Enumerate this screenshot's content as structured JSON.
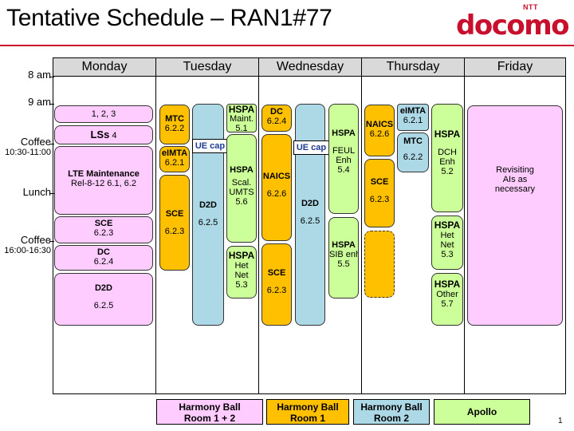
{
  "header": {
    "title": "Tentative Schedule – RAN1#77",
    "logo_small": "NTT",
    "logo_word": "docomo"
  },
  "days": [
    "Monday",
    "Tuesday",
    "Wednesday",
    "Thursday",
    "Friday"
  ],
  "times": {
    "t8": "8 am",
    "t9": "9 am",
    "coffee1": "Coffee",
    "coffee1_time": "10:30-11:00",
    "lunch": "Lunch",
    "coffee2": "Coffee",
    "coffee2_time": "16:00-16:30"
  },
  "monday": {
    "m1": "1, 2, 3",
    "lss": "LSs",
    "lss_num": "4",
    "lte_title": "LTE Maintenance",
    "lte_sub": "Rel-8-12   6.1, 6.2",
    "sce_title": "SCE",
    "sce_num": "6.2.3",
    "dc_title": "DC",
    "dc_num": "6.2.4",
    "d2d_title": "D2D",
    "d2d_num": "6.2.5"
  },
  "tuesday": {
    "mtc_title": "MTC",
    "mtc_num": "6.2.2",
    "eimta_title": "eIMTA",
    "eimta_num": "6.2.1",
    "sce_title": "SCE",
    "sce_num": "6.2.3",
    "uecap": "UE cap",
    "d2d_title": "D2D",
    "d2d_num": "6.2.5",
    "hspa1_title": "HSPA",
    "hspa1_sub": "Maint.",
    "hspa1_num": "5.1",
    "hspa2_title": "HSPA",
    "hspa2_sub1": "Scal.",
    "hspa2_sub2": "UMTS",
    "hspa2_num": "5.6",
    "hspa3_title": "HSPA",
    "hspa3_sub1": "Het",
    "hspa3_sub2": "Net",
    "hspa3_num": "5.3"
  },
  "wednesday": {
    "dc_title": "DC",
    "dc_num": "6.2.4",
    "naics_title": "NAICS",
    "naics_num": "6.2.6",
    "sce_title": "SCE",
    "sce_num": "6.2.3",
    "uecap": "UE cap",
    "d2d_title": "D2D",
    "d2d_num": "6.2.5",
    "hspa1_title": "HSPA",
    "hspa1_sub1": "FEUL",
    "hspa1_sub2": "Enh",
    "hspa1_num": "5.4",
    "hspa2_title": "HSPA",
    "hspa2_sub": "SIB enh.",
    "hspa2_num": "5.5"
  },
  "thursday": {
    "naics_title": "NAICS",
    "naics_num": "6.2.6",
    "sce_title": "SCE",
    "sce_num": "6.2.3",
    "eimta_title": "eIMTA",
    "eimta_num": "6.2.1",
    "mtc_title": "MTC",
    "mtc_num": "6.2.2",
    "hspa1_title": "HSPA",
    "hspa1_sub1": "DCH",
    "hspa1_sub2": "Enh",
    "hspa1_num": "5.2",
    "hspa2_title": "HSPA",
    "hspa2_sub1": "Het",
    "hspa2_sub2": "Net",
    "hspa2_num": "5.3",
    "hspa3_title": "HSPA",
    "hspa3_sub": "Other",
    "hspa3_num": "5.7"
  },
  "friday": {
    "rev1": "Revisiting",
    "rev2": "AIs as",
    "rev3": "necessary"
  },
  "legend": {
    "room12_l1": "Harmony Ball",
    "room12_l2": "Room 1 + 2",
    "room1_l1": "Harmony Ball",
    "room1_l2": "Room 1",
    "room2_l1": "Harmony Ball",
    "room2_l2": "Room 2",
    "apollo": "Apollo"
  },
  "page_number": "1",
  "colors": {
    "pink": "#ffccff",
    "orange": "#ffc000",
    "blue": "#add8e6",
    "green": "#ccff99",
    "brand": "#c8102e"
  }
}
